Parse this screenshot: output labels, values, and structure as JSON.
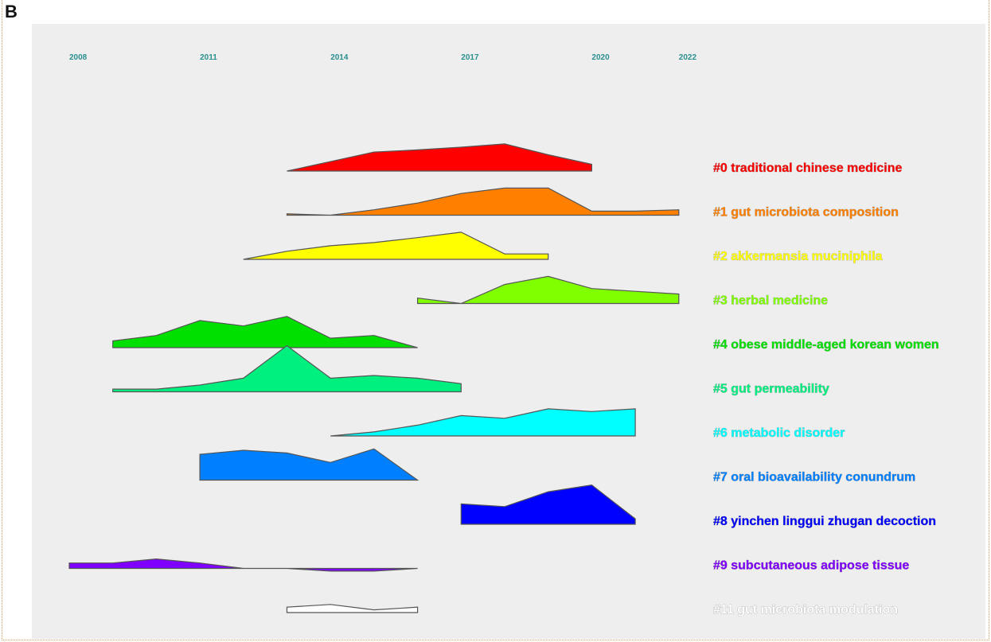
{
  "panel_label": "B",
  "chart_data": {
    "type": "area",
    "title": "",
    "x_ticks": [
      2008,
      2011,
      2014,
      2017,
      2020,
      2022
    ],
    "xlim": [
      2008,
      2022
    ],
    "series": [
      {
        "name": "#0 traditional chinese medicine",
        "color": "#ff0000",
        "x": [
          2013,
          2014,
          2015,
          2016,
          2017,
          2018,
          2019,
          2020
        ],
        "y": [
          0,
          0.35,
          0.7,
          0.78,
          0.88,
          1.0,
          0.6,
          0.25
        ]
      },
      {
        "name": "#1 gut microbiota composition",
        "color": "#ff8000",
        "x": [
          2013,
          2014,
          2015,
          2016,
          2017,
          2018,
          2019,
          2020,
          2021,
          2022
        ],
        "y": [
          0.05,
          0.0,
          0.2,
          0.45,
          0.8,
          1.0,
          1.0,
          0.15,
          0.15,
          0.2
        ]
      },
      {
        "name": "#2 akkermansia muciniphila",
        "color": "#ffff00",
        "x": [
          2012,
          2013,
          2014,
          2015,
          2016,
          2017,
          2018,
          2019
        ],
        "y": [
          0,
          0.3,
          0.5,
          0.62,
          0.8,
          1.0,
          0.2,
          0.2
        ]
      },
      {
        "name": "#3 herbal medicine",
        "color": "#80ff00",
        "x": [
          2016,
          2017,
          2018,
          2019,
          2020,
          2021,
          2022
        ],
        "y": [
          0.2,
          0.0,
          0.7,
          1.0,
          0.55,
          0.45,
          0.35
        ]
      },
      {
        "name": "#4 obese middle-aged korean women",
        "color": "#00e000",
        "x": [
          2009,
          2010,
          2011,
          2012,
          2013,
          2014,
          2015,
          2016
        ],
        "y": [
          0.25,
          0.45,
          1.0,
          0.8,
          1.15,
          0.35,
          0.45,
          0.0
        ]
      },
      {
        "name": "#5 gut permeability",
        "color": "#00f080",
        "x": [
          2009,
          2010,
          2011,
          2012,
          2013,
          2014,
          2015,
          2016,
          2017
        ],
        "y": [
          0.1,
          0.1,
          0.25,
          0.5,
          1.7,
          0.5,
          0.6,
          0.5,
          0.3
        ]
      },
      {
        "name": "#6 metabolic disorder",
        "color": "#00ffff",
        "x": [
          2014,
          2015,
          2016,
          2017,
          2018,
          2019,
          2020,
          2021
        ],
        "y": [
          0,
          0.15,
          0.4,
          0.75,
          0.65,
          1.0,
          0.9,
          1.0
        ]
      },
      {
        "name": "#7 oral bioavailability conundrum",
        "color": "#0080ff",
        "x": [
          2011,
          2012,
          2013,
          2014,
          2015,
          2016
        ],
        "y": [
          0.95,
          1.1,
          1.0,
          0.65,
          1.15,
          0.0
        ]
      },
      {
        "name": "#8 yinchen linggui zhugan decoction",
        "color": "#0000ff",
        "x": [
          2017,
          2018,
          2019,
          2020,
          2021
        ],
        "y": [
          0.75,
          0.65,
          1.2,
          1.45,
          0.2
        ]
      },
      {
        "name": "#9 subcutaneous adipose tissue",
        "color": "#8000ff",
        "x": [
          2008,
          2009,
          2010,
          2011,
          2012,
          2013,
          2014,
          2015,
          2016
        ],
        "y": [
          0.2,
          0.2,
          0.35,
          0.2,
          0.0,
          0.0,
          -0.1,
          -0.1,
          0.0
        ]
      },
      {
        "name": "#11 gut microbiota modulation",
        "color": "#ffffff",
        "x": [
          2013,
          2014,
          2015,
          2016
        ],
        "y": [
          0.2,
          0.3,
          0.1,
          0.2
        ]
      }
    ]
  }
}
